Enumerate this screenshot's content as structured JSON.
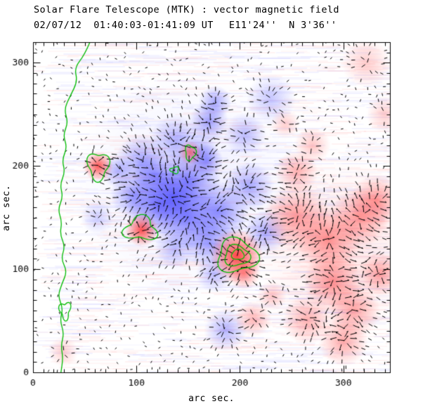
{
  "header": {
    "title": "Solar Flare Telescope (MTK) : vector magnetic field",
    "datetime": "02/07/12  01:40:03-01:41:09 UT",
    "position": "E11'24''  N 3'36''"
  },
  "chart_data": {
    "type": "heatmap",
    "title": "Solar Flare Telescope (MTK) : vector magnetic field",
    "subtitle": "02/07/12  01:40:03-01:41:09 UT  E11'24''  N 3'36''",
    "xlabel": "arc sec.",
    "ylabel": "arc sec.",
    "xlim": [
      0,
      345
    ],
    "ylim": [
      0,
      320
    ],
    "xticks": [
      0,
      100,
      200,
      300
    ],
    "yticks": [
      0,
      100,
      200,
      300
    ],
    "minor_tick_step": 10,
    "grid": false,
    "legend": "none",
    "colors": {
      "positive": "#ff3c3c",
      "negative": "#4646ff",
      "contour": "#00bb00",
      "vector": "#000000",
      "frame": "#000000",
      "background": "#ffffff"
    },
    "sources_format": "[x_arcsec, y_arcsec, radius_arcsec, intensity_0to1, polarity(+1 red / -1 blue)]",
    "sources": [
      [
        105,
        205,
        16,
        0.45,
        -1
      ],
      [
        138,
        224,
        16,
        0.4,
        -1
      ],
      [
        150,
        185,
        20,
        0.65,
        -1
      ],
      [
        121,
        163,
        20,
        0.7,
        -1
      ],
      [
        97,
        172,
        14,
        0.5,
        -1
      ],
      [
        150,
        150,
        20,
        0.7,
        -1
      ],
      [
        180,
        156,
        18,
        0.6,
        -1
      ],
      [
        170,
        126,
        16,
        0.5,
        -1
      ],
      [
        137,
        120,
        12,
        0.35,
        -1
      ],
      [
        209,
        180,
        15,
        0.45,
        -1
      ],
      [
        205,
        231,
        13,
        0.35,
        -1
      ],
      [
        170,
        243,
        12,
        0.5,
        -1
      ],
      [
        176,
        262,
        10,
        0.45,
        -1
      ],
      [
        168,
        205,
        10,
        0.5,
        -1
      ],
      [
        230,
        265,
        15,
        0.3,
        -1
      ],
      [
        62,
        150,
        10,
        0.25,
        -1
      ],
      [
        186,
        41,
        13,
        0.4,
        -1
      ],
      [
        175,
        95,
        11,
        0.35,
        -1
      ],
      [
        225,
        136,
        13,
        0.45,
        -1
      ],
      [
        118,
        190,
        14,
        0.55,
        -1
      ],
      [
        135,
        170,
        16,
        0.6,
        -1
      ],
      [
        163,
        215,
        10,
        0.4,
        -1
      ],
      [
        82,
        195,
        10,
        0.4,
        -1
      ],
      [
        150,
        180,
        70,
        0.1,
        -1
      ],
      [
        63,
        200,
        9,
        0.85,
        1
      ],
      [
        105,
        138,
        10,
        0.9,
        1
      ],
      [
        152,
        213,
        7,
        0.65,
        1
      ],
      [
        197,
        113,
        16,
        0.95,
        1
      ],
      [
        204,
        96,
        10,
        0.55,
        1
      ],
      [
        255,
        150,
        20,
        0.5,
        1
      ],
      [
        285,
        129,
        20,
        0.55,
        1
      ],
      [
        315,
        150,
        18,
        0.5,
        1
      ],
      [
        332,
        166,
        16,
        0.5,
        1
      ],
      [
        290,
        88,
        18,
        0.55,
        1
      ],
      [
        310,
        60,
        16,
        0.45,
        1
      ],
      [
        265,
        51,
        15,
        0.4,
        1
      ],
      [
        300,
        30,
        15,
        0.45,
        1
      ],
      [
        335,
        95,
        13,
        0.45,
        1
      ],
      [
        255,
        194,
        13,
        0.4,
        1
      ],
      [
        270,
        220,
        11,
        0.3,
        1
      ],
      [
        322,
        300,
        15,
        0.25,
        1
      ],
      [
        340,
        250,
        11,
        0.25,
        1
      ],
      [
        213,
        52,
        11,
        0.35,
        1
      ],
      [
        231,
        74,
        9,
        0.3,
        1
      ],
      [
        29,
        20,
        9,
        0.25,
        1
      ],
      [
        244,
        241,
        9,
        0.25,
        1
      ],
      [
        300,
        120,
        55,
        0.12,
        1
      ]
    ],
    "neutral_line": [
      [
        55,
        320
      ],
      [
        50,
        308
      ],
      [
        40,
        295
      ],
      [
        43,
        282
      ],
      [
        36,
        268
      ],
      [
        30,
        255
      ],
      [
        34,
        242
      ],
      [
        29,
        230
      ],
      [
        33,
        218
      ],
      [
        28,
        206
      ],
      [
        31,
        194
      ],
      [
        26,
        182
      ],
      [
        29,
        170
      ],
      [
        24,
        158
      ],
      [
        28,
        146
      ],
      [
        26,
        134
      ],
      [
        31,
        122
      ],
      [
        27,
        110
      ],
      [
        33,
        98
      ],
      [
        28,
        86
      ],
      [
        24,
        74
      ],
      [
        29,
        62
      ],
      [
        26,
        50
      ],
      [
        30,
        38
      ],
      [
        27,
        26
      ],
      [
        29,
        14
      ],
      [
        27,
        0
      ]
    ],
    "contours_format": "[x, y, rx, ry, wobble]",
    "contours": [
      [
        63,
        200,
        10,
        13,
        0.22
      ],
      [
        104,
        139,
        15,
        11,
        0.28
      ],
      [
        197,
        113,
        19,
        16,
        0.18
      ],
      [
        197,
        113,
        12,
        10,
        0.15
      ],
      [
        198,
        114,
        6,
        5,
        0.1
      ],
      [
        137,
        196,
        4,
        3,
        0.25
      ],
      [
        152,
        213,
        5,
        7,
        0.2
      ],
      [
        31,
        60,
        5,
        8,
        0.3
      ]
    ],
    "vector_grid_step": 7
  }
}
